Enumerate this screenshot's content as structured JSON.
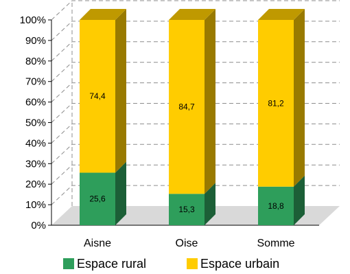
{
  "chart_data": {
    "type": "bar",
    "stacked": true,
    "percent": true,
    "three_d": true,
    "categories": [
      "Aisne",
      "Oise",
      "Somme"
    ],
    "series": [
      {
        "name": "Espace rural",
        "values": [
          25.6,
          15.3,
          18.8
        ],
        "labels": [
          "25,6",
          "15,3",
          "18,8"
        ],
        "color": "#2e9e5b"
      },
      {
        "name": "Espace urbain",
        "values": [
          74.4,
          84.7,
          81.2
        ],
        "labels": [
          "74,4",
          "84,7",
          "81,2"
        ],
        "color": "#ffcc00"
      }
    ],
    "yticks": [
      "0%",
      "10%",
      "20%",
      "30%",
      "40%",
      "50%",
      "60%",
      "70%",
      "80%",
      "90%",
      "100%"
    ],
    "ylim": [
      0,
      100
    ],
    "grid": true,
    "legend_position": "bottom"
  }
}
